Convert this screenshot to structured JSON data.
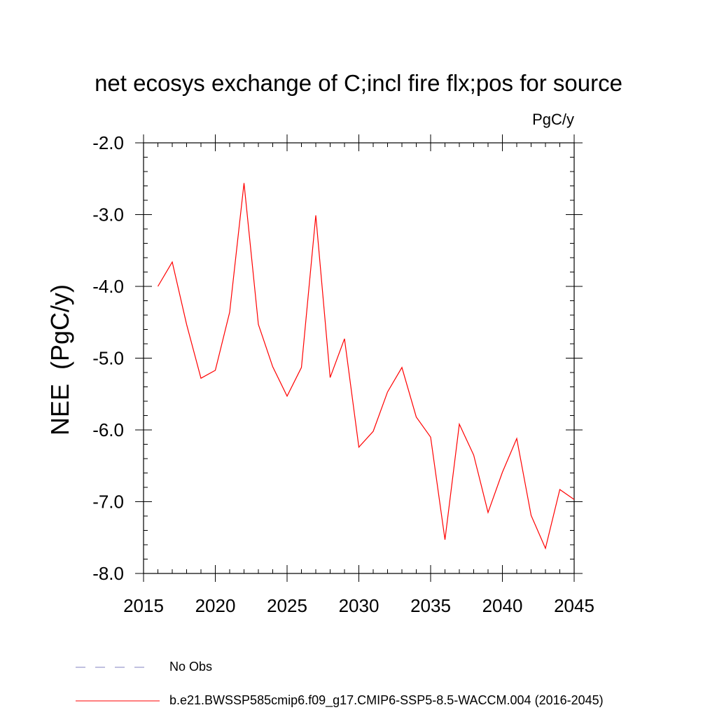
{
  "title": "net ecosys exchange of C;incl fire flx;pos for source",
  "units": "PgC/y",
  "legend": {
    "obs_label": "No Obs",
    "model_label": "b.e21.BWSSP585cmip6.f09_g17.CMIP6-SSP5-8.5-WACCM.004 (2016-2045)"
  },
  "chart_data": {
    "type": "line",
    "title": "net ecosys exchange of C;incl fire flx;pos for source",
    "units": "PgC/y",
    "xlabel": "",
    "ylabel": "NEE  (PgC/y)",
    "xlim": [
      2015,
      2045
    ],
    "ylim": [
      -8.0,
      -2.0
    ],
    "x_ticks": [
      2015,
      2020,
      2025,
      2030,
      2035,
      2040,
      2045
    ],
    "x_tick_labels": [
      "2015",
      "2020",
      "2025",
      "2030",
      "2035",
      "2040",
      "2045"
    ],
    "y_ticks": [
      -2.0,
      -3.0,
      -4.0,
      -5.0,
      -6.0,
      -7.0,
      -8.0
    ],
    "y_tick_labels": [
      "-2.0",
      "-3.0",
      "-4.0",
      "-5.0",
      "-6.0",
      "-7.0",
      "-8.0"
    ],
    "grid": false,
    "legend_position": "bottom",
    "series": [
      {
        "name": "b.e21.BWSSP585cmip6.f09_g17.CMIP6-SSP5-8.5-WACCM.004 (2016-2045)",
        "color": "#ff0000",
        "x": [
          2016,
          2017,
          2018,
          2019,
          2020,
          2021,
          2022,
          2023,
          2024,
          2025,
          2026,
          2027,
          2028,
          2029,
          2030,
          2031,
          2032,
          2033,
          2034,
          2035,
          2036,
          2037,
          2038,
          2039,
          2040,
          2041,
          2042,
          2043,
          2044,
          2045
        ],
        "y": [
          -4.0,
          -3.66,
          -4.53,
          -5.28,
          -5.17,
          -4.36,
          -2.56,
          -4.53,
          -5.12,
          -5.53,
          -5.13,
          -3.01,
          -5.27,
          -4.73,
          -6.24,
          -6.02,
          -5.47,
          -5.13,
          -5.82,
          -6.1,
          -7.53,
          -5.92,
          -6.35,
          -7.15,
          -6.59,
          -6.12,
          -7.19,
          -7.65,
          -6.83,
          -6.97
        ]
      },
      {
        "name": "No Obs",
        "color": "#8080c0",
        "dash": "dashed",
        "x": [],
        "y": []
      }
    ]
  }
}
